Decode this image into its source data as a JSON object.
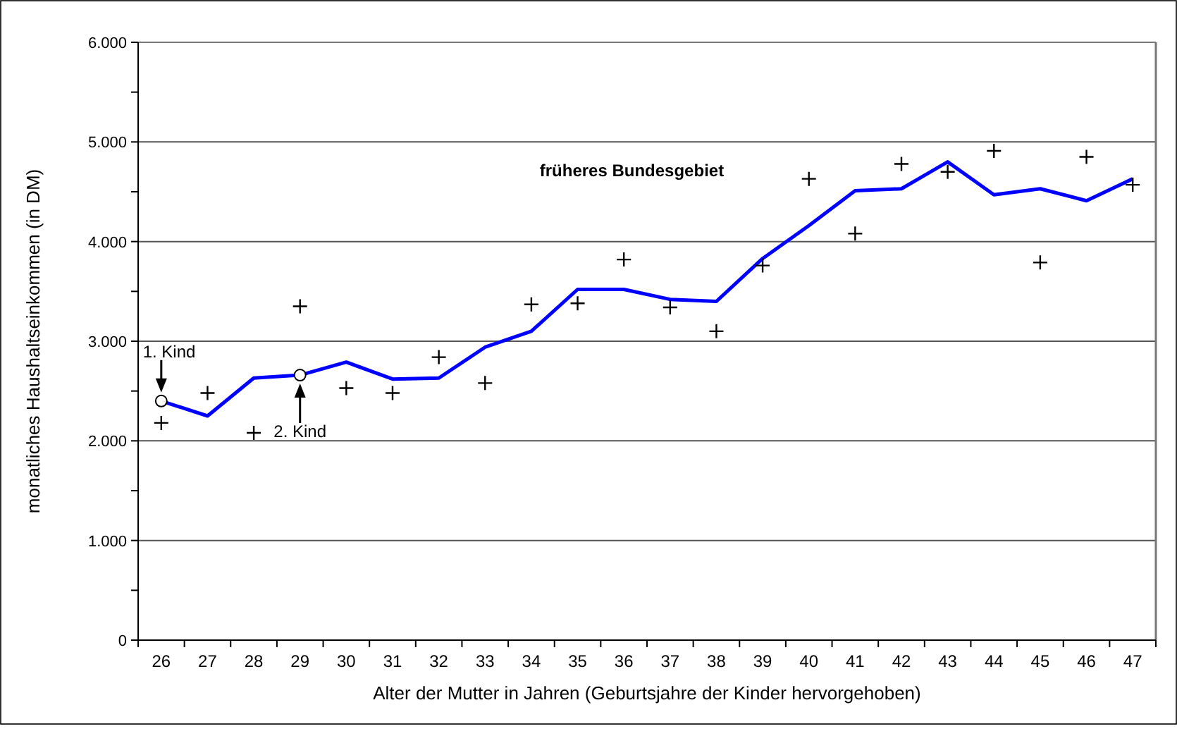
{
  "chart_data": {
    "type": "line",
    "xlabel": "Alter der Mutter in Jahren (Geburtsjahre der Kinder hervorgehoben)",
    "ylabel": "monatliches Haushaltseinkommen (in DM)",
    "categories": [
      "26",
      "27",
      "28",
      "29",
      "30",
      "31",
      "32",
      "33",
      "34",
      "35",
      "36",
      "37",
      "38",
      "39",
      "40",
      "41",
      "42",
      "43",
      "44",
      "45",
      "46",
      "47"
    ],
    "series": [
      {
        "name": "früheres Bundesgebiet",
        "color": "#0000ff",
        "marker": "none",
        "values": [
          2400,
          2250,
          2630,
          2660,
          2790,
          2620,
          2630,
          2940,
          3100,
          3520,
          3520,
          3420,
          3400,
          3830,
          4160,
          4510,
          4530,
          4800,
          4470,
          4530,
          4410,
          4630
        ]
      },
      {
        "type": "scatter",
        "color": "#000000",
        "marker": "cross",
        "values": [
          2180,
          2480,
          2080,
          3350,
          2530,
          2480,
          2840,
          2580,
          3370,
          3380,
          3820,
          3340,
          3100,
          3760,
          4630,
          4080,
          4780,
          4700,
          4910,
          3790,
          4850,
          4570
        ]
      }
    ],
    "ylim": [
      0,
      6000
    ],
    "yticks": [
      0,
      {
        "value": 500,
        "label": null
      },
      {
        "value": 1000,
        "label": "1.000"
      },
      {
        "value": 1500,
        "label": null
      },
      {
        "value": 2000,
        "label": "2.000"
      },
      {
        "value": 2500,
        "label": null
      },
      {
        "value": 3000,
        "label": "3.000"
      },
      {
        "value": 3500,
        "label": null
      },
      {
        "value": 4000,
        "label": "4.000"
      },
      {
        "value": 4500,
        "label": null
      },
      {
        "value": 5000,
        "label": "5.000"
      },
      {
        "value": 5500,
        "label": null
      },
      {
        "value": 6000,
        "label": "6.000"
      }
    ],
    "grid": "y",
    "annotations": [
      {
        "text": "1. Kind",
        "x": "26",
        "y": 2400
      },
      {
        "text": "2. Kind",
        "x": "29",
        "y": 2660
      }
    ]
  }
}
